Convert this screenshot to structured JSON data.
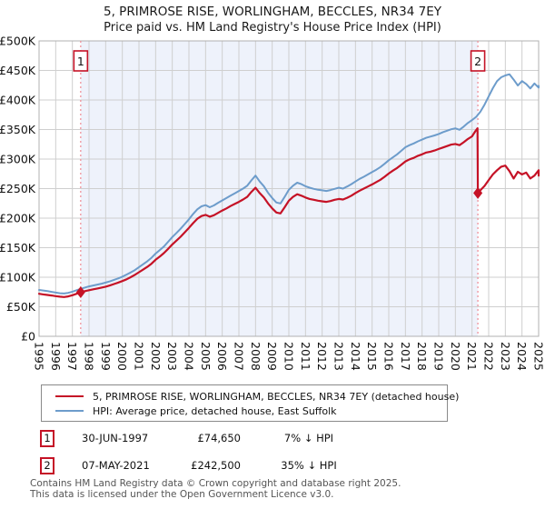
{
  "title": "5, PRIMROSE RISE, WORLINGHAM, BECCLES, NR34 7EY",
  "subtitle": "Price paid vs. HM Land Registry's House Price Index (HPI)",
  "legend": [
    {
      "label": "5, PRIMROSE RISE, WORLINGHAM, BECCLES, NR34 7EY (detached house)",
      "color": "#c51226"
    },
    {
      "label": "HPI: Average price, detached house, East Suffolk",
      "color": "#6d9ccb"
    }
  ],
  "transactions": [
    {
      "num": "1",
      "date": "30-JUN-1997",
      "price": "£74,650",
      "hpi_delta": "7% ↓ HPI"
    },
    {
      "num": "2",
      "date": "07-MAY-2021",
      "price": "£242,500",
      "hpi_delta": "35% ↓ HPI"
    }
  ],
  "footer": [
    "Contains HM Land Registry data © Crown copyright and database right 2025.",
    "This data is licensed under the Open Government Licence v3.0."
  ],
  "chart_data": {
    "type": "line",
    "xlim": [
      1995,
      2025
    ],
    "ylim": [
      0,
      500000
    ],
    "grid": true,
    "legend_position": "bottom",
    "y_ticks": [
      {
        "value": 0,
        "label": "£0"
      },
      {
        "value": 50000,
        "label": "£50K"
      },
      {
        "value": 100000,
        "label": "£100K"
      },
      {
        "value": 150000,
        "label": "£150K"
      },
      {
        "value": 200000,
        "label": "£200K"
      },
      {
        "value": 250000,
        "label": "£250K"
      },
      {
        "value": 300000,
        "label": "£300K"
      },
      {
        "value": 350000,
        "label": "£350K"
      },
      {
        "value": 400000,
        "label": "£400K"
      },
      {
        "value": 450000,
        "label": "£450K"
      },
      {
        "value": 500000,
        "label": "£500K"
      }
    ],
    "x_ticks": [
      1995,
      1996,
      1997,
      1998,
      1999,
      2000,
      2001,
      2002,
      2003,
      2004,
      2005,
      2006,
      2007,
      2008,
      2009,
      2010,
      2011,
      2012,
      2013,
      2014,
      2015,
      2016,
      2017,
      2018,
      2019,
      2020,
      2021,
      2022,
      2023,
      2024,
      2025
    ],
    "shaded_period": {
      "from": 1997.5,
      "to": 2021.35,
      "fill": "#eef2fb"
    },
    "sale_markers": [
      {
        "label": "1",
        "x": 1997.5,
        "y": 74650
      },
      {
        "label": "2",
        "x": 2021.35,
        "y": 242500
      }
    ],
    "marker_line_color": "#ef8a94",
    "series": [
      {
        "name": "5, PRIMROSE RISE, WORLINGHAM, BECCLES, NR34 7EY (detached house)",
        "color": "#c51226",
        "width": 2.2,
        "points": [
          [
            1995.0,
            72000
          ],
          [
            1995.25,
            71000
          ],
          [
            1995.5,
            70000
          ],
          [
            1995.75,
            69000
          ],
          [
            1996.0,
            68000
          ],
          [
            1996.25,
            67000
          ],
          [
            1996.5,
            66500
          ],
          [
            1996.75,
            67500
          ],
          [
            1997.0,
            69500
          ],
          [
            1997.25,
            72000
          ],
          [
            1997.5,
            74650
          ],
          [
            1997.75,
            76500
          ],
          [
            1998.0,
            78000
          ],
          [
            1998.25,
            79500
          ],
          [
            1998.5,
            81000
          ],
          [
            1998.75,
            82500
          ],
          [
            1999.0,
            84000
          ],
          [
            1999.25,
            86000
          ],
          [
            1999.5,
            88500
          ],
          [
            1999.75,
            91000
          ],
          [
            2000.0,
            93500
          ],
          [
            2000.25,
            96500
          ],
          [
            2000.5,
            100000
          ],
          [
            2000.75,
            104000
          ],
          [
            2001.0,
            108500
          ],
          [
            2001.25,
            113000
          ],
          [
            2001.5,
            117500
          ],
          [
            2001.75,
            123000
          ],
          [
            2002.0,
            129500
          ],
          [
            2002.25,
            135000
          ],
          [
            2002.5,
            141000
          ],
          [
            2002.75,
            148000
          ],
          [
            2003.0,
            155500
          ],
          [
            2003.25,
            162000
          ],
          [
            2003.5,
            168500
          ],
          [
            2003.75,
            176000
          ],
          [
            2004.0,
            183500
          ],
          [
            2004.25,
            191500
          ],
          [
            2004.5,
            199000
          ],
          [
            2004.75,
            203500
          ],
          [
            2005.0,
            205500
          ],
          [
            2005.25,
            202500
          ],
          [
            2005.5,
            205000
          ],
          [
            2005.75,
            209000
          ],
          [
            2006.0,
            213000
          ],
          [
            2006.25,
            216500
          ],
          [
            2006.5,
            220500
          ],
          [
            2006.75,
            224000
          ],
          [
            2007.0,
            227500
          ],
          [
            2007.25,
            231500
          ],
          [
            2007.5,
            236000
          ],
          [
            2007.75,
            244500
          ],
          [
            2008.0,
            251500
          ],
          [
            2008.25,
            242500
          ],
          [
            2008.5,
            235000
          ],
          [
            2008.75,
            225000
          ],
          [
            2009.0,
            216500
          ],
          [
            2009.25,
            209500
          ],
          [
            2009.5,
            208000
          ],
          [
            2009.75,
            218500
          ],
          [
            2010.0,
            229500
          ],
          [
            2010.25,
            236000
          ],
          [
            2010.5,
            240500
          ],
          [
            2010.75,
            238000
          ],
          [
            2011.0,
            235000
          ],
          [
            2011.25,
            232500
          ],
          [
            2011.5,
            231000
          ],
          [
            2011.75,
            229500
          ],
          [
            2012.0,
            228500
          ],
          [
            2012.25,
            227500
          ],
          [
            2012.5,
            229000
          ],
          [
            2012.75,
            231000
          ],
          [
            2013.0,
            232500
          ],
          [
            2013.25,
            231500
          ],
          [
            2013.5,
            234500
          ],
          [
            2013.75,
            238000
          ],
          [
            2014.0,
            242500
          ],
          [
            2014.25,
            246500
          ],
          [
            2014.5,
            250000
          ],
          [
            2014.75,
            253500
          ],
          [
            2015.0,
            257000
          ],
          [
            2015.25,
            261000
          ],
          [
            2015.5,
            265000
          ],
          [
            2015.75,
            270000
          ],
          [
            2016.0,
            275500
          ],
          [
            2016.25,
            280500
          ],
          [
            2016.5,
            285000
          ],
          [
            2016.75,
            290500
          ],
          [
            2017.0,
            296000
          ],
          [
            2017.25,
            299500
          ],
          [
            2017.5,
            302000
          ],
          [
            2017.75,
            305500
          ],
          [
            2018.0,
            308000
          ],
          [
            2018.25,
            311000
          ],
          [
            2018.5,
            312500
          ],
          [
            2018.75,
            314500
          ],
          [
            2019.0,
            317000
          ],
          [
            2019.25,
            319500
          ],
          [
            2019.5,
            322000
          ],
          [
            2019.75,
            324500
          ],
          [
            2020.0,
            325500
          ],
          [
            2020.25,
            323500
          ],
          [
            2020.5,
            328500
          ],
          [
            2020.75,
            334000
          ],
          [
            2021.0,
            338500
          ],
          [
            2021.2,
            347000
          ],
          [
            2021.33,
            352000
          ],
          [
            2021.35,
            242500
          ],
          [
            2021.5,
            247000
          ],
          [
            2021.75,
            254500
          ],
          [
            2022.0,
            264500
          ],
          [
            2022.25,
            274000
          ],
          [
            2022.5,
            281000
          ],
          [
            2022.75,
            287000
          ],
          [
            2023.0,
            289000
          ],
          [
            2023.25,
            279500
          ],
          [
            2023.5,
            267000
          ],
          [
            2023.75,
            278500
          ],
          [
            2024.0,
            274000
          ],
          [
            2024.25,
            277000
          ],
          [
            2024.5,
            267000
          ],
          [
            2024.75,
            272000
          ],
          [
            2025.0,
            281000
          ],
          [
            2025.1,
            272000
          ]
        ]
      },
      {
        "name": "HPI: Average price, detached house, East Suffolk",
        "color": "#6d9ccb",
        "width": 2,
        "points": [
          [
            1995.0,
            78500
          ],
          [
            1995.25,
            77500
          ],
          [
            1995.5,
            76500
          ],
          [
            1995.75,
            75200
          ],
          [
            1996.0,
            74000
          ],
          [
            1996.25,
            73000
          ],
          [
            1996.5,
            72500
          ],
          [
            1996.75,
            73500
          ],
          [
            1997.0,
            75500
          ],
          [
            1997.25,
            78000
          ],
          [
            1997.5,
            80300
          ],
          [
            1997.75,
            82500
          ],
          [
            1998.0,
            84500
          ],
          [
            1998.25,
            86000
          ],
          [
            1998.5,
            87500
          ],
          [
            1998.75,
            89000
          ],
          [
            1999.0,
            91000
          ],
          [
            1999.25,
            93000
          ],
          [
            1999.5,
            95500
          ],
          [
            1999.75,
            98000
          ],
          [
            2000.0,
            101000
          ],
          [
            2000.25,
            104500
          ],
          [
            2000.5,
            108000
          ],
          [
            2000.75,
            112000
          ],
          [
            2001.0,
            117000
          ],
          [
            2001.25,
            122000
          ],
          [
            2001.5,
            127000
          ],
          [
            2001.75,
            133000
          ],
          [
            2002.0,
            140000
          ],
          [
            2002.25,
            146000
          ],
          [
            2002.5,
            152000
          ],
          [
            2002.75,
            160000
          ],
          [
            2003.0,
            168000
          ],
          [
            2003.25,
            175000
          ],
          [
            2003.5,
            182000
          ],
          [
            2003.75,
            190000
          ],
          [
            2004.0,
            198000
          ],
          [
            2004.25,
            207000
          ],
          [
            2004.5,
            215000
          ],
          [
            2004.75,
            220000
          ],
          [
            2005.0,
            222000
          ],
          [
            2005.25,
            218500
          ],
          [
            2005.5,
            221500
          ],
          [
            2005.75,
            226000
          ],
          [
            2006.0,
            230000
          ],
          [
            2006.25,
            234000
          ],
          [
            2006.5,
            238000
          ],
          [
            2006.75,
            242000
          ],
          [
            2007.0,
            246000
          ],
          [
            2007.25,
            250000
          ],
          [
            2007.5,
            255000
          ],
          [
            2007.75,
            264000
          ],
          [
            2008.0,
            272000
          ],
          [
            2008.25,
            262000
          ],
          [
            2008.5,
            254000
          ],
          [
            2008.75,
            243000
          ],
          [
            2009.0,
            234000
          ],
          [
            2009.25,
            226500
          ],
          [
            2009.5,
            225000
          ],
          [
            2009.75,
            236000
          ],
          [
            2010.0,
            248000
          ],
          [
            2010.25,
            255000
          ],
          [
            2010.5,
            260000
          ],
          [
            2010.75,
            257500
          ],
          [
            2011.0,
            254000
          ],
          [
            2011.25,
            251500
          ],
          [
            2011.5,
            249500
          ],
          [
            2011.75,
            248000
          ],
          [
            2012.0,
            247000
          ],
          [
            2012.25,
            246000
          ],
          [
            2012.5,
            247500
          ],
          [
            2012.75,
            249500
          ],
          [
            2013.0,
            251500
          ],
          [
            2013.25,
            250000
          ],
          [
            2013.5,
            253500
          ],
          [
            2013.75,
            257500
          ],
          [
            2014.0,
            262000
          ],
          [
            2014.25,
            266500
          ],
          [
            2014.5,
            270000
          ],
          [
            2014.75,
            274000
          ],
          [
            2015.0,
            278000
          ],
          [
            2015.25,
            282000
          ],
          [
            2015.5,
            286500
          ],
          [
            2015.75,
            292000
          ],
          [
            2016.0,
            298000
          ],
          [
            2016.25,
            303000
          ],
          [
            2016.5,
            308000
          ],
          [
            2016.75,
            314000
          ],
          [
            2017.0,
            320000
          ],
          [
            2017.25,
            323500
          ],
          [
            2017.5,
            326500
          ],
          [
            2017.75,
            330000
          ],
          [
            2018.0,
            333000
          ],
          [
            2018.25,
            336000
          ],
          [
            2018.5,
            338000
          ],
          [
            2018.75,
            340000
          ],
          [
            2019.0,
            342500
          ],
          [
            2019.25,
            345500
          ],
          [
            2019.5,
            348000
          ],
          [
            2019.75,
            350500
          ],
          [
            2020.0,
            352000
          ],
          [
            2020.25,
            349500
          ],
          [
            2020.5,
            355000
          ],
          [
            2020.75,
            361000
          ],
          [
            2021.0,
            366000
          ],
          [
            2021.25,
            371500
          ],
          [
            2021.5,
            380000
          ],
          [
            2021.75,
            392000
          ],
          [
            2022.0,
            406000
          ],
          [
            2022.25,
            420000
          ],
          [
            2022.5,
            432000
          ],
          [
            2022.75,
            438500
          ],
          [
            2023.0,
            441500
          ],
          [
            2023.25,
            443500
          ],
          [
            2023.5,
            434500
          ],
          [
            2023.75,
            424500
          ],
          [
            2024.0,
            432000
          ],
          [
            2024.25,
            427000
          ],
          [
            2024.5,
            419500
          ],
          [
            2024.75,
            428000
          ],
          [
            2025.0,
            421000
          ],
          [
            2025.1,
            424000
          ]
        ]
      }
    ]
  }
}
